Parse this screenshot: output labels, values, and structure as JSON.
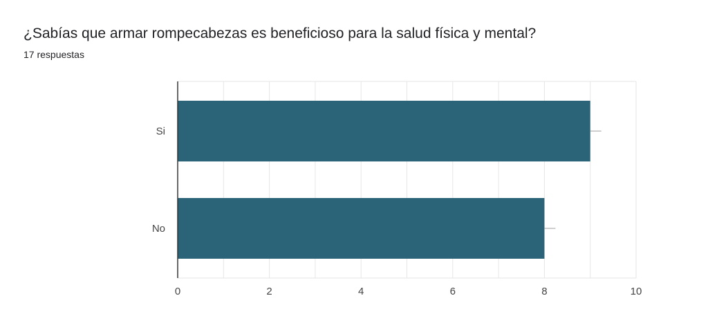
{
  "header": {
    "question": "¿Sabías que armar rompecabezas es beneficioso para la salud física y mental?",
    "responses": "17 respuestas"
  },
  "colors": {
    "bar": "#2b6479",
    "grid": "#e6e6e6",
    "axis": "#333333",
    "text": "#444444"
  },
  "chart_data": {
    "type": "bar",
    "orientation": "horizontal",
    "categories": [
      "Si",
      "No"
    ],
    "values": [
      9,
      8
    ],
    "xlim": [
      0,
      10
    ],
    "xticks": [
      "0",
      "2",
      "4",
      "6",
      "8",
      "10"
    ],
    "grid": true
  }
}
